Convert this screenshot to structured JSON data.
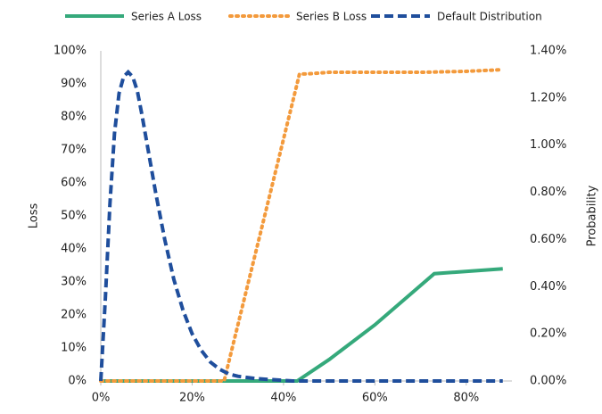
{
  "chart_data": {
    "type": "line",
    "x_axis_labels": null,
    "y_label": "Loss",
    "y2_label": "Probability",
    "xlim": [
      0,
      90
    ],
    "xticks": [
      {
        "value": 0,
        "label": "0%"
      },
      {
        "value": 20,
        "label": "20%"
      },
      {
        "value": 40,
        "label": "40%"
      },
      {
        "value": 60,
        "label": "60%"
      },
      {
        "value": 80,
        "label": "80%"
      }
    ],
    "ylim": [
      0,
      100
    ],
    "yticks": [
      {
        "value": 0,
        "label": "0%"
      },
      {
        "value": 10,
        "label": "10%"
      },
      {
        "value": 20,
        "label": "20%"
      },
      {
        "value": 30,
        "label": "30%"
      },
      {
        "value": 40,
        "label": "40%"
      },
      {
        "value": 50,
        "label": "50%"
      },
      {
        "value": 60,
        "label": "60%"
      },
      {
        "value": 70,
        "label": "70%"
      },
      {
        "value": 80,
        "label": "80%"
      },
      {
        "value": 90,
        "label": "90%"
      },
      {
        "value": 100,
        "label": "100%"
      }
    ],
    "y2lim": [
      0,
      1.4
    ],
    "y2ticks": [
      {
        "value": 0,
        "label": "0.00%"
      },
      {
        "value": 0.2,
        "label": "0.20%"
      },
      {
        "value": 0.4,
        "label": "0.40%"
      },
      {
        "value": 0.6,
        "label": "0.60%"
      },
      {
        "value": 0.8,
        "label": "0.80%"
      },
      {
        "value": 1.0,
        "label": "1.00%"
      },
      {
        "value": 1.2,
        "label": "1.20%"
      },
      {
        "value": 1.4,
        "label": "1.40%"
      }
    ],
    "grid": false,
    "legend": "top",
    "series": [
      {
        "name": "Series A Loss",
        "color": "#35a97b",
        "dash": "solid",
        "x": [
          0,
          43,
          50,
          60,
          73,
          88
        ],
        "values": [
          0,
          0,
          6.5,
          17,
          32.5,
          34
        ]
      },
      {
        "name": "Series B Loss",
        "color": "#f39a3c",
        "dash": "dotted",
        "x": [
          0,
          27,
          43.5,
          45,
          50,
          60,
          70,
          80,
          88
        ],
        "values": [
          0,
          0,
          93,
          93,
          93.5,
          93.5,
          93.5,
          93.8,
          94.3
        ]
      },
      {
        "name": "Default Distribution",
        "color": "#1f4e9c",
        "dash": "dashed",
        "axis": "y2",
        "x": [
          0,
          1,
          2,
          3,
          4,
          5,
          6,
          7,
          8,
          9,
          10,
          12,
          14,
          16,
          18,
          20,
          22,
          24,
          26,
          28,
          30,
          34,
          38,
          42,
          50,
          60,
          70,
          80,
          88
        ],
        "values": [
          0,
          0.35,
          0.75,
          1.05,
          1.22,
          1.29,
          1.31,
          1.29,
          1.23,
          1.13,
          1.02,
          0.8,
          0.6,
          0.43,
          0.3,
          0.2,
          0.13,
          0.08,
          0.05,
          0.03,
          0.02,
          0.01,
          0.005,
          0,
          0,
          0,
          0,
          0,
          0
        ]
      }
    ]
  }
}
